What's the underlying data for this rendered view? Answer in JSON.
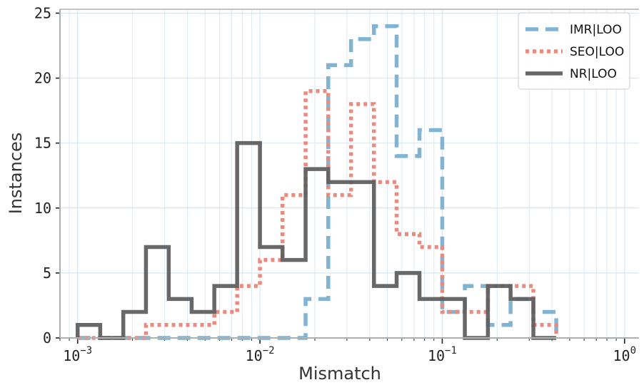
{
  "chart_data": {
    "type": "histogram",
    "xscale": "log",
    "xlim": [
      0.0008,
      1.2
    ],
    "ylim": [
      0,
      25.3
    ],
    "xlabel": "Mismatch",
    "ylabel": "Instances",
    "grid": true,
    "legend_position": "top-right",
    "x_ticks": [
      {
        "value": 0.001,
        "base": "10",
        "exp": "−3"
      },
      {
        "value": 0.01,
        "base": "10",
        "exp": "−2"
      },
      {
        "value": 0.1,
        "base": "10",
        "exp": "−1"
      },
      {
        "value": 1,
        "base": "10",
        "exp": "0"
      }
    ],
    "y_ticks": [
      {
        "value": 0,
        "label": "0"
      },
      {
        "value": 5,
        "label": "5"
      },
      {
        "value": 10,
        "label": "10"
      },
      {
        "value": 15,
        "label": "15"
      },
      {
        "value": 20,
        "label": "20"
      },
      {
        "value": 25,
        "label": "25"
      }
    ],
    "bin_edges": [
      0.001,
      0.00133,
      0.00178,
      0.00237,
      0.00316,
      0.00422,
      0.00562,
      0.0075,
      0.01,
      0.0133,
      0.0178,
      0.0237,
      0.0316,
      0.0422,
      0.0562,
      0.075,
      0.1,
      0.133,
      0.178,
      0.237,
      0.316,
      0.422
    ],
    "series": [
      {
        "name": "IMR|LOO",
        "color": "#7fb4d5",
        "dash": "dashed",
        "values": [
          0,
          0,
          0,
          0,
          0,
          0,
          0,
          0,
          0,
          0,
          3,
          21,
          23,
          24,
          14,
          16,
          2,
          4,
          1,
          3,
          2
        ]
      },
      {
        "name": "SEO|LOO",
        "color": "#ec8a7d",
        "dash": "dotted",
        "values": [
          0,
          0,
          0,
          1,
          1,
          1,
          2,
          4,
          6,
          11,
          19,
          11,
          18,
          12,
          8,
          7,
          2,
          2,
          4,
          4,
          1
        ]
      },
      {
        "name": "NR|LOO",
        "color": "#606060",
        "dash": "solid",
        "values": [
          1,
          0,
          2,
          7,
          3,
          2,
          4,
          15,
          7,
          6,
          13,
          12,
          12,
          4,
          5,
          3,
          3,
          0,
          4,
          3,
          0
        ]
      }
    ]
  }
}
